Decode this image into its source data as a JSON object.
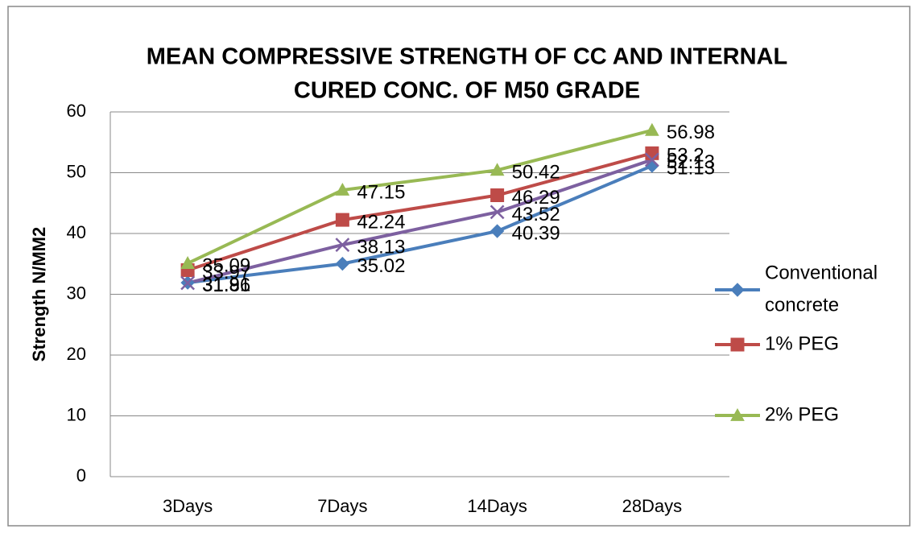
{
  "chart_data": {
    "type": "line",
    "title": "MEAN COMPRESSIVE STRENGTH OF CC AND INTERNAL CURED CONC. OF M50 GRADE",
    "title_lines": [
      "MEAN COMPRESSIVE STRENGTH OF CC AND INTERNAL",
      "CURED CONC. OF M50 GRADE"
    ],
    "y_label": "Strength N/MM2",
    "categories": [
      "3Days",
      "7Days",
      "14Days",
      "28Days"
    ],
    "series": [
      {
        "name": "Conventional concrete",
        "legend_lines": [
          "Conventional",
          "concrete"
        ],
        "color": "#4a7ebb",
        "marker": "diamond",
        "values": [
          31.91,
          35.02,
          40.39,
          51.13
        ]
      },
      {
        "name": "1% PEG",
        "color": "#be4b48",
        "marker": "square",
        "values": [
          33.97,
          42.24,
          46.29,
          53.2
        ]
      },
      {
        "name": "2% PEG",
        "color": "#98b954",
        "marker": "triangle",
        "values": [
          35.09,
          47.15,
          50.42,
          56.98
        ]
      },
      {
        "color": "#7d60a0",
        "marker": "x",
        "values": [
          31.86,
          38.13,
          43.52,
          52.13
        ]
      }
    ],
    "ylim": [
      0,
      60
    ],
    "yticks": [
      0,
      10,
      20,
      30,
      40,
      50,
      60
    ],
    "grid": true,
    "legend": "right"
  }
}
